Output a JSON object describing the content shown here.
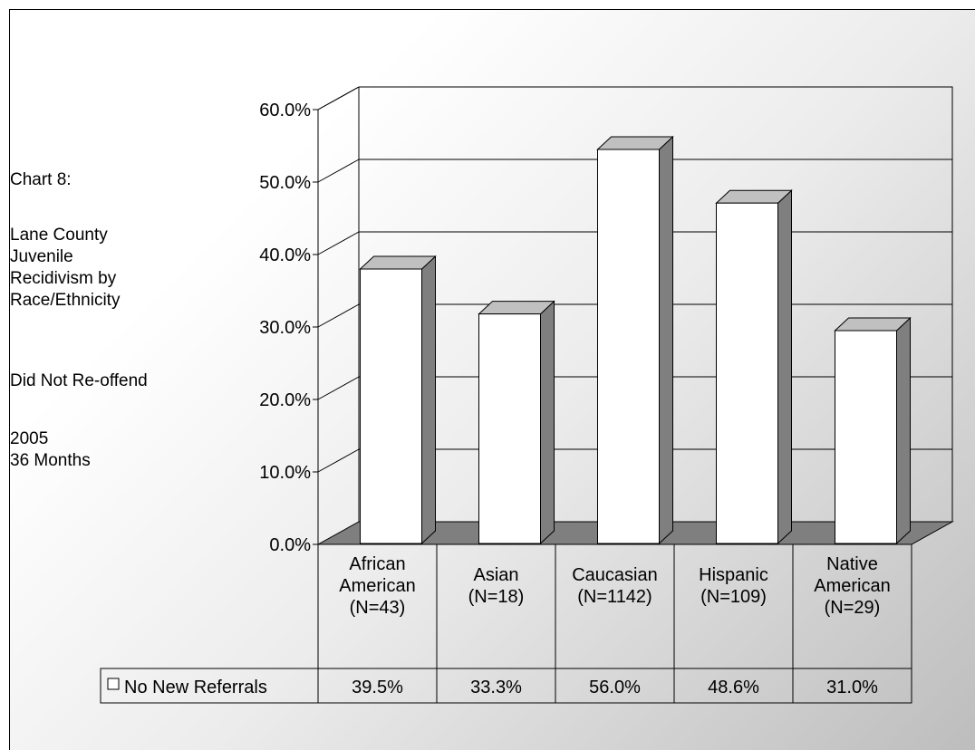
{
  "side_text": {
    "chart_number": "Chart 8:",
    "title_lines": [
      "Lane County",
      "Juvenile",
      "Recidivism by",
      "Race/Ethnicity"
    ],
    "subtitle": "Did Not Re-offend",
    "year": "2005",
    "period": "36 Months"
  },
  "colors": {
    "bar_front": "#ffffff",
    "bar_side": "#7f7f7f",
    "bar_top": "#c0c0c0",
    "floor": "#7f7f7f",
    "grid": "#000000"
  },
  "chart_data": {
    "type": "bar",
    "three_d": true,
    "categories": [
      [
        "African",
        "American",
        "(N=43)"
      ],
      [
        "Asian",
        "(N=18)"
      ],
      [
        "Caucasian",
        "(N=1142)"
      ],
      [
        "Hispanic",
        "(N=109)"
      ],
      [
        "Native",
        "American",
        "(N=29)"
      ]
    ],
    "series": [
      {
        "name": "No New Referrals",
        "values": [
          39.5,
          33.3,
          56.0,
          48.6,
          31.0
        ],
        "labels": [
          "39.5%",
          "33.3%",
          "56.0%",
          "48.6%",
          "31.0%"
        ]
      }
    ],
    "y_ticks": [
      "0.0%",
      "10.0%",
      "20.0%",
      "30.0%",
      "40.0%",
      "50.0%",
      "60.0%"
    ],
    "ylim": [
      0,
      60
    ],
    "grid": true,
    "legend": "data-table"
  }
}
